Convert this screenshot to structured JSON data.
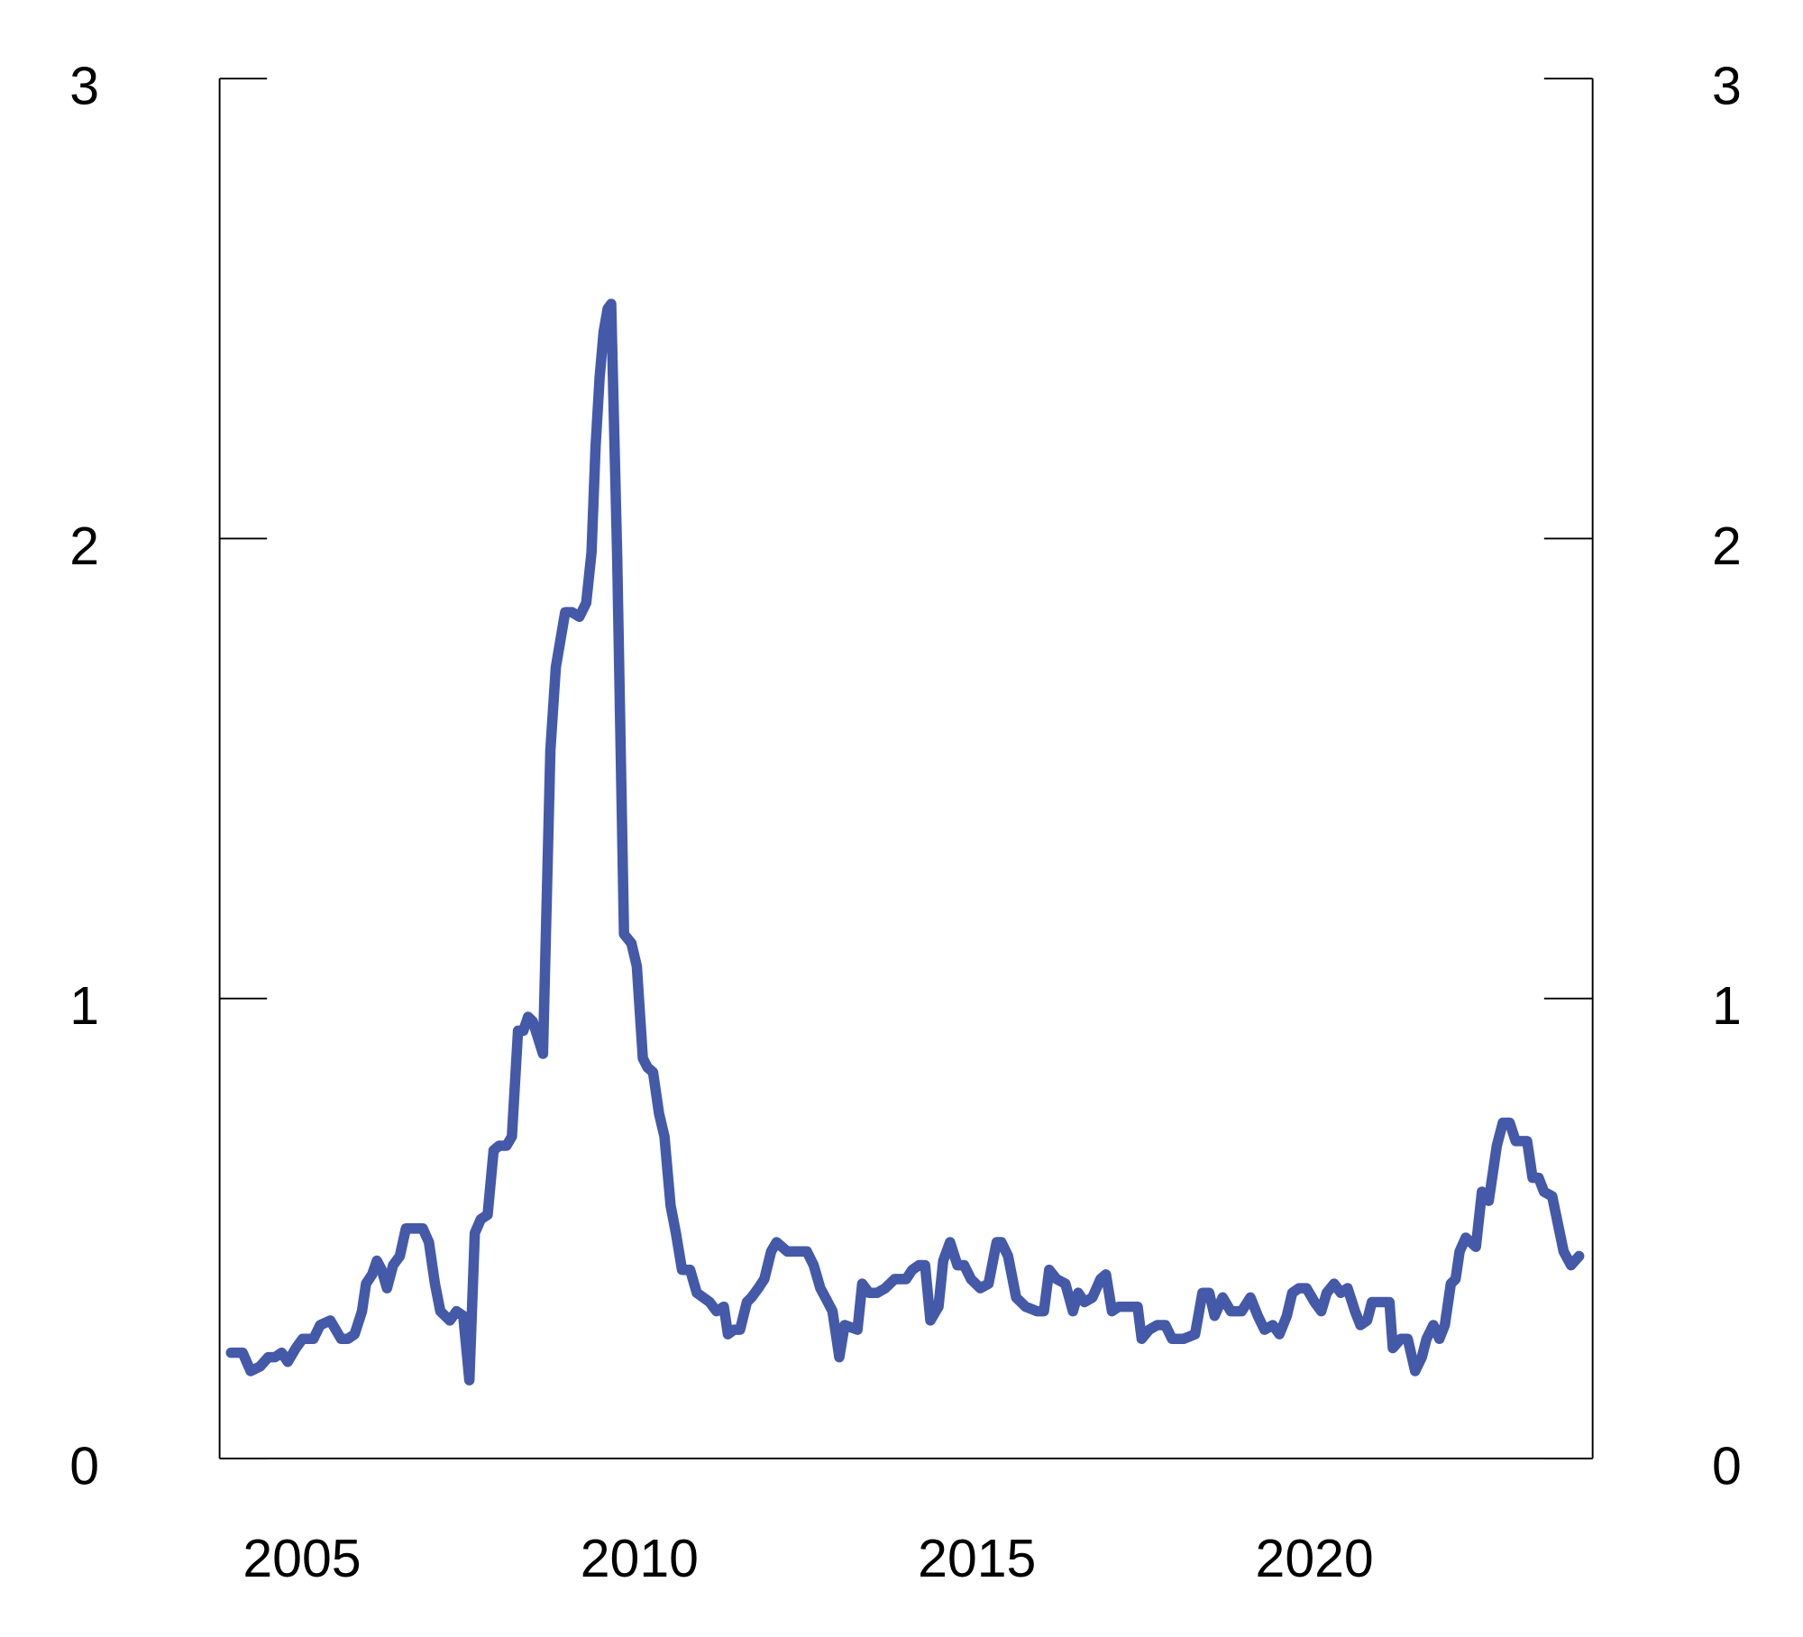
{
  "chart_data": {
    "type": "line",
    "x": [
      2003.95,
      2004.12,
      2004.24,
      2004.38,
      2004.5,
      2004.6,
      2004.7,
      2004.79,
      2004.91,
      2005.01,
      2005.17,
      2005.27,
      2005.42,
      2005.58,
      2005.68,
      2005.78,
      2005.89,
      2005.95,
      2006.04,
      2006.11,
      2006.18,
      2006.26,
      2006.35,
      2006.45,
      2006.54,
      2006.73,
      2006.79,
      2006.88,
      2006.97,
      2007.05,
      2007.19,
      2007.29,
      2007.39,
      2007.48,
      2007.56,
      2007.65,
      2007.75,
      2007.84,
      2007.92,
      2008.03,
      2008.11,
      2008.2,
      2008.28,
      2008.35,
      2008.42,
      2008.57,
      2008.68,
      2008.76,
      2008.9,
      2009.0,
      2009.11,
      2009.21,
      2009.29,
      2009.35,
      2009.41,
      2009.47,
      2009.53,
      2009.58,
      2009.67,
      2009.77,
      2009.88,
      2009.96,
      2010.05,
      2010.12,
      2010.2,
      2010.29,
      2010.37,
      2010.46,
      2010.54,
      2010.63,
      2010.75,
      2010.85,
      2011.04,
      2011.14,
      2011.25,
      2011.31,
      2011.4,
      2011.49,
      2011.59,
      2011.66,
      2011.76,
      2011.85,
      2011.95,
      2012.03,
      2012.19,
      2012.48,
      2012.58,
      2012.68,
      2012.79,
      2012.86,
      2012.96,
      2013.04,
      2013.23,
      2013.3,
      2013.4,
      2013.52,
      2013.64,
      2013.78,
      2013.95,
      2014.04,
      2014.14,
      2014.23,
      2014.31,
      2014.43,
      2014.5,
      2014.6,
      2014.71,
      2014.81,
      2014.91,
      2015.05,
      2015.17,
      2015.29,
      2015.36,
      2015.46,
      2015.58,
      2015.72,
      2015.89,
      2015.99,
      2016.07,
      2016.18,
      2016.31,
      2016.42,
      2016.5,
      2016.59,
      2016.71,
      2016.83,
      2016.91,
      2017.0,
      2017.1,
      2017.38,
      2017.44,
      2017.55,
      2017.67,
      2017.79,
      2017.89,
      2018.06,
      2018.23,
      2018.34,
      2018.44,
      2018.52,
      2018.64,
      2018.76,
      2018.92,
      2019.05,
      2019.16,
      2019.26,
      2019.38,
      2019.48,
      2019.59,
      2019.67,
      2019.77,
      2019.88,
      2020.0,
      2020.1,
      2020.18,
      2020.29,
      2020.39,
      2020.49,
      2020.6,
      2020.68,
      2020.78,
      2020.85,
      2021.01,
      2021.11,
      2021.16,
      2021.28,
      2021.38,
      2021.49,
      2021.59,
      2021.66,
      2021.76,
      2021.85,
      2021.93,
      2022.02,
      2022.09,
      2022.15,
      2022.24,
      2022.39,
      2022.48,
      2022.58,
      2022.7,
      2022.79,
      2022.89,
      2022.98,
      2023.1,
      2023.15,
      2023.23,
      2023.32,
      2023.4,
      2023.52,
      2023.69,
      2023.8,
      2023.92
    ],
    "series": [
      {
        "color": "#4459a8",
        "values": [
          0.23,
          0.23,
          0.19,
          0.2,
          0.22,
          0.22,
          0.23,
          0.21,
          0.24,
          0.26,
          0.26,
          0.29,
          0.3,
          0.26,
          0.26,
          0.27,
          0.32,
          0.38,
          0.4,
          0.43,
          0.41,
          0.37,
          0.42,
          0.44,
          0.5,
          0.5,
          0.5,
          0.47,
          0.38,
          0.32,
          0.3,
          0.32,
          0.31,
          0.17,
          0.49,
          0.52,
          0.53,
          0.67,
          0.68,
          0.68,
          0.7,
          0.93,
          0.93,
          0.96,
          0.95,
          0.88,
          1.54,
          1.72,
          1.84,
          1.84,
          1.83,
          1.86,
          1.97,
          2.2,
          2.35,
          2.45,
          2.5,
          2.51,
          1.96,
          1.14,
          1.12,
          1.07,
          0.87,
          0.85,
          0.84,
          0.75,
          0.7,
          0.55,
          0.49,
          0.41,
          0.41,
          0.36,
          0.34,
          0.32,
          0.33,
          0.27,
          0.28,
          0.28,
          0.34,
          0.35,
          0.37,
          0.39,
          0.45,
          0.47,
          0.45,
          0.45,
          0.42,
          0.37,
          0.34,
          0.32,
          0.22,
          0.29,
          0.28,
          0.38,
          0.36,
          0.36,
          0.37,
          0.39,
          0.39,
          0.41,
          0.42,
          0.42,
          0.3,
          0.33,
          0.43,
          0.47,
          0.42,
          0.42,
          0.39,
          0.37,
          0.38,
          0.47,
          0.47,
          0.44,
          0.35,
          0.33,
          0.32,
          0.32,
          0.41,
          0.39,
          0.38,
          0.32,
          0.36,
          0.34,
          0.35,
          0.39,
          0.4,
          0.32,
          0.33,
          0.33,
          0.26,
          0.28,
          0.29,
          0.29,
          0.26,
          0.26,
          0.27,
          0.36,
          0.36,
          0.31,
          0.35,
          0.32,
          0.32,
          0.35,
          0.31,
          0.28,
          0.29,
          0.27,
          0.31,
          0.36,
          0.37,
          0.37,
          0.34,
          0.32,
          0.36,
          0.38,
          0.36,
          0.37,
          0.32,
          0.29,
          0.3,
          0.34,
          0.34,
          0.34,
          0.24,
          0.26,
          0.26,
          0.19,
          0.22,
          0.26,
          0.29,
          0.26,
          0.29,
          0.38,
          0.39,
          0.45,
          0.48,
          0.46,
          0.58,
          0.56,
          0.68,
          0.73,
          0.73,
          0.69,
          0.69,
          0.69,
          0.61,
          0.61,
          0.58,
          0.57,
          0.45,
          0.42,
          0.44
        ]
      }
    ],
    "xlim": [
      2003.78,
      2024.12
    ],
    "xticks": [
      2005,
      2010,
      2015,
      2020
    ],
    "ylim": [
      0,
      3
    ],
    "yticks": [
      0,
      1,
      2,
      3
    ],
    "y2lim": [
      0,
      3
    ],
    "y2ticks": [
      0,
      1,
      2,
      3
    ]
  }
}
